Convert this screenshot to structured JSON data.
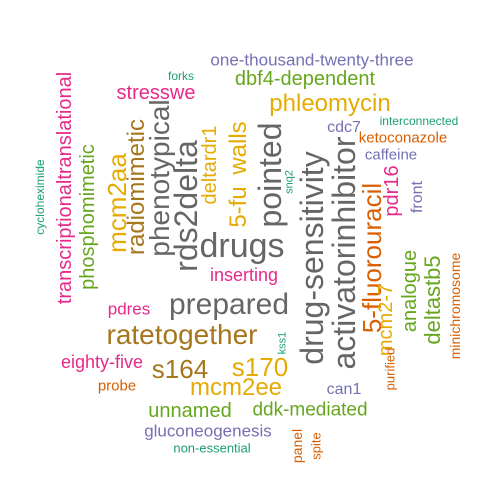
{
  "colors": {
    "green": "#1b9e77",
    "orange": "#d95f02",
    "purple": "#7570b3",
    "magenta": "#e7298a",
    "olive": "#66a61e",
    "gold": "#e6ab02",
    "brown": "#a6761d",
    "gray": "#666666"
  },
  "words": [
    {
      "text": "one-thousand-twenty-three",
      "color": "#7570b3"
    },
    {
      "text": "forks",
      "color": "#1b9e77"
    },
    {
      "text": "dbf4-dependent",
      "color": "#66a61e"
    },
    {
      "text": "stresswe",
      "color": "#e7298a"
    },
    {
      "text": "phleomycin",
      "color": "#e6ab02"
    },
    {
      "text": "interconnected",
      "color": "#1b9e77"
    },
    {
      "text": "ketoconazole",
      "color": "#d95f02"
    },
    {
      "text": "cdc7",
      "color": "#7570b3"
    },
    {
      "text": "caffeine",
      "color": "#7570b3"
    },
    {
      "text": "transcriptionaltranslational",
      "color": "#e7298a"
    },
    {
      "text": "phosphomimetic",
      "color": "#66a61e"
    },
    {
      "text": "cycloheximide",
      "color": "#1b9e77"
    },
    {
      "text": "mcm2aa",
      "color": "#e6ab02"
    },
    {
      "text": "radiomimetic",
      "color": "#a6761d"
    },
    {
      "text": "phenotypical",
      "color": "#666666"
    },
    {
      "text": "rds2delta",
      "color": "#666666"
    },
    {
      "text": "deltardr1",
      "color": "#e6ab02"
    },
    {
      "text": "5-fu",
      "color": "#e6ab02"
    },
    {
      "text": "walls",
      "color": "#e6ab02"
    },
    {
      "text": "drugs",
      "color": "#666666"
    },
    {
      "text": "pointed",
      "color": "#666666"
    },
    {
      "text": "snq2",
      "color": "#1b9e77"
    },
    {
      "text": "drug-sensitivity",
      "color": "#666666"
    },
    {
      "text": "activatorinhibitor",
      "color": "#666666"
    },
    {
      "text": "5-fluorouracil",
      "color": "#d95f02"
    },
    {
      "text": "pdr16",
      "color": "#e7298a"
    },
    {
      "text": "front",
      "color": "#7570b3"
    },
    {
      "text": "inserting",
      "color": "#e7298a"
    },
    {
      "text": "prepared",
      "color": "#666666"
    },
    {
      "text": "pdres",
      "color": "#e7298a"
    },
    {
      "text": "ratetogether",
      "color": "#a6761d"
    },
    {
      "text": "mcm2-7",
      "color": "#e6ab02"
    },
    {
      "text": "analogue",
      "color": "#66a61e"
    },
    {
      "text": "deltastb5",
      "color": "#66a61e"
    },
    {
      "text": "minichromosome",
      "color": "#d95f02"
    },
    {
      "text": "eighty-five",
      "color": "#e7298a"
    },
    {
      "text": "s164",
      "color": "#a6761d"
    },
    {
      "text": "s170",
      "color": "#e6ab02"
    },
    {
      "text": "kss1",
      "color": "#1b9e77"
    },
    {
      "text": "probe",
      "color": "#d95f02"
    },
    {
      "text": "mcm2ee",
      "color": "#e6ab02"
    },
    {
      "text": "purified",
      "color": "#d95f02"
    },
    {
      "text": "can1",
      "color": "#7570b3"
    },
    {
      "text": "unnamed",
      "color": "#66a61e"
    },
    {
      "text": "ddk-mediated",
      "color": "#66a61e"
    },
    {
      "text": "gluconeogenesis",
      "color": "#7570b3"
    },
    {
      "text": "panel",
      "color": "#d95f02"
    },
    {
      "text": "spite",
      "color": "#d95f02"
    },
    {
      "text": "non-essential",
      "color": "#1b9e77"
    }
  ]
}
